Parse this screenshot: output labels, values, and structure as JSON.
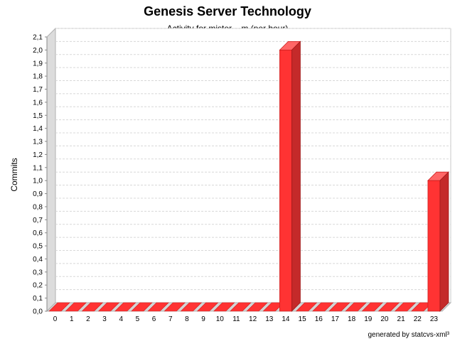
{
  "title": "Genesis Server Technology",
  "subtitle": "Activity for mister__m (per hour)",
  "footer": "generated by statcvs-xml³",
  "chart_data": {
    "type": "bar",
    "title": "Genesis Server Technology",
    "subtitle": "Activity for mister__m (per hour)",
    "xlabel": "",
    "ylabel": "Commits",
    "ylim": [
      0,
      2.1
    ],
    "grid": true,
    "legend": "none",
    "categories": [
      "0",
      "1",
      "2",
      "3",
      "4",
      "5",
      "6",
      "7",
      "8",
      "9",
      "10",
      "11",
      "12",
      "13",
      "14",
      "15",
      "16",
      "17",
      "18",
      "19",
      "20",
      "21",
      "22",
      "23"
    ],
    "yticks": [
      "0,0",
      "0,1",
      "0,2",
      "0,3",
      "0,4",
      "0,5",
      "0,6",
      "0,7",
      "0,8",
      "0,9",
      "1,0",
      "1,1",
      "1,2",
      "1,3",
      "1,4",
      "1,5",
      "1,6",
      "1,7",
      "1,8",
      "1,9",
      "2,0",
      "2,1"
    ],
    "series": [
      {
        "values": [
          0,
          0,
          0,
          0,
          0,
          0,
          0,
          0,
          0,
          0,
          0,
          0,
          0,
          0,
          2,
          0,
          0,
          0,
          0,
          0,
          0,
          0,
          0,
          1
        ],
        "color": "#ff3333"
      }
    ]
  }
}
